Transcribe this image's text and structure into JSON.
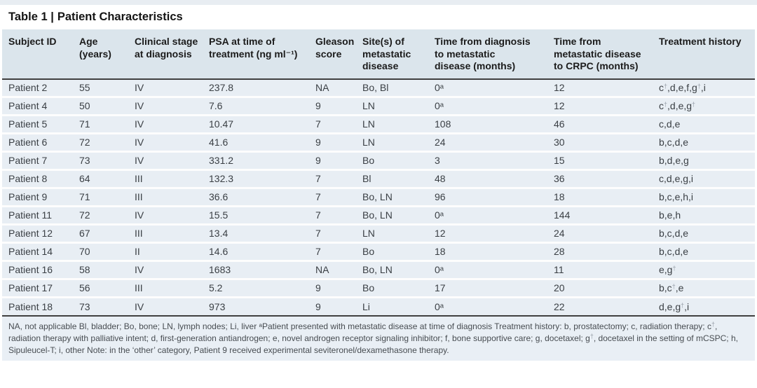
{
  "header": {
    "table_label": "Table 1 |",
    "title": "Patient Characteristics"
  },
  "table": {
    "columns": [
      "Subject ID",
      "Age\n(years)",
      "Clinical stage\nat diagnosis",
      "PSA at time of\ntreatment (ng ml⁻¹)",
      "Gleason\nscore",
      "Site(s) of\nmetastatic\ndisease",
      "Time from diagnosis\nto metastatic\ndisease (months)",
      "Time from\nmetastatic disease\nto CRPC (months)",
      "Treatment history"
    ],
    "rows": [
      [
        "Patient 2",
        "55",
        "IV",
        "237.8",
        "NA",
        "Bo, Bl",
        "0ᵃ",
        "12",
        "c†,d,e,f,g†,i"
      ],
      [
        "Patient 4",
        "50",
        "IV",
        "7.6",
        "9",
        "LN",
        "0ᵃ",
        "12",
        "c†,d,e,g†"
      ],
      [
        "Patient 5",
        "71",
        "IV",
        "10.47",
        "7",
        "LN",
        "108",
        "46",
        "c,d,e"
      ],
      [
        "Patient 6",
        "72",
        "IV",
        "41.6",
        "9",
        "LN",
        "24",
        "30",
        "b,c,d,e"
      ],
      [
        "Patient 7",
        "73",
        "IV",
        "331.2",
        "9",
        "Bo",
        "3",
        "15",
        "b,d,e,g"
      ],
      [
        "Patient 8",
        "64",
        "III",
        "132.3",
        "7",
        "Bl",
        "48",
        "36",
        "c,d,e,g,i"
      ],
      [
        "Patient 9",
        "71",
        "III",
        "36.6",
        "7",
        "Bo, LN",
        "96",
        "18",
        "b,c,e,h,i"
      ],
      [
        "Patient 11",
        "72",
        "IV",
        "15.5",
        "7",
        "Bo, LN",
        "0ᵃ",
        "144",
        "b,e,h"
      ],
      [
        "Patient 12",
        "67",
        "III",
        "13.4",
        "7",
        "LN",
        "12",
        "24",
        "b,c,d,e"
      ],
      [
        "Patient 14",
        "70",
        "II",
        "14.6",
        "7",
        "Bo",
        "18",
        "28",
        "b,c,d,e"
      ],
      [
        "Patient 16",
        "58",
        "IV",
        "1683",
        "NA",
        "Bo, LN",
        "0ᵃ",
        "11",
        "e,g†"
      ],
      [
        "Patient 17",
        "56",
        "III",
        "5.2",
        "9",
        "Bo",
        "17",
        "20",
        "b,c†,e"
      ],
      [
        "Patient 18",
        "73",
        "IV",
        "973",
        "9",
        "Li",
        "0ᵃ",
        "22",
        "d,e,g†,i"
      ]
    ]
  },
  "footnote": "NA, not applicable Bl, bladder; Bo, bone; LN, lymph nodes; Li, liver ᵃPatient presented with metastatic disease at time of diagnosis Treatment history: b, prostatectomy; c, radiation therapy; c†, radiation therapy with palliative intent; d, first-generation antiandrogen; e, novel androgen receptor signaling inhibitor; f, bone supportive care; g, docetaxel; g†, docetaxel in the setting of mCSPC; h, Sipuleucel-T; i, other Note: in the ‘other’ category, Patient 9 received experimental seviteronel/dexamethasone therapy.",
  "colors": {
    "header_bg": "#dbe5ec",
    "row_bg": "#e8eef4",
    "footnote_bg": "#e9eff5",
    "rule": "#404040"
  }
}
